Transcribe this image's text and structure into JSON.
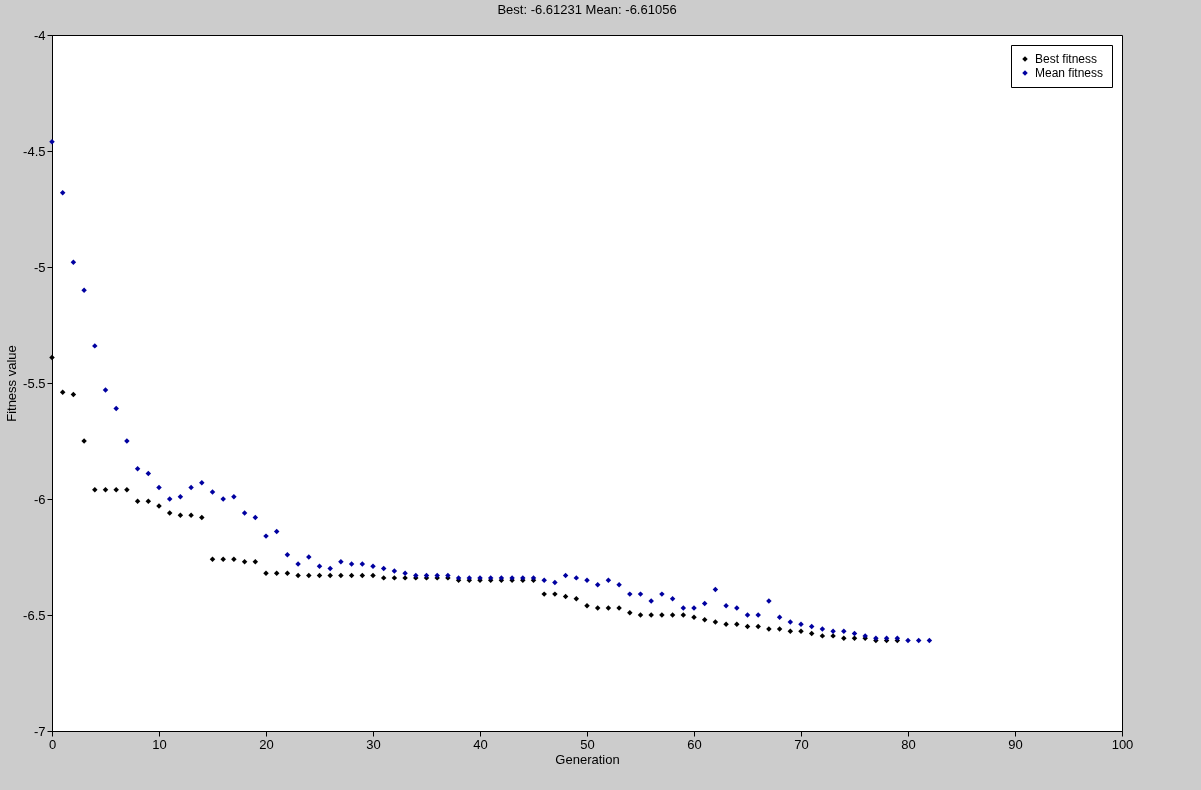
{
  "chart_data": {
    "type": "scatter",
    "title": "Best: -6.61231 Mean: -6.61056",
    "xlabel": "Generation",
    "ylabel": "Fitness value",
    "x": [
      0,
      1,
      2,
      3,
      4,
      5,
      6,
      7,
      8,
      9,
      10,
      11,
      12,
      13,
      14,
      15,
      16,
      17,
      18,
      19,
      20,
      21,
      22,
      23,
      24,
      25,
      26,
      27,
      28,
      29,
      30,
      31,
      32,
      33,
      34,
      35,
      36,
      37,
      38,
      39,
      40,
      41,
      42,
      43,
      44,
      45,
      46,
      47,
      48,
      49,
      50,
      51,
      52,
      53,
      54,
      55,
      56,
      57,
      58,
      59,
      60,
      61,
      62,
      63,
      64,
      65,
      66,
      67,
      68,
      69,
      70,
      71,
      72,
      73,
      74,
      75,
      76,
      77,
      78,
      79,
      80,
      81,
      82
    ],
    "series": [
      {
        "name": "Best fitness",
        "color": "#000000",
        "values": [
          -5.39,
          -5.54,
          -5.55,
          -5.75,
          -5.96,
          -5.96,
          -5.96,
          -5.96,
          -6.01,
          -6.01,
          -6.03,
          -6.06,
          -6.07,
          -6.07,
          -6.08,
          -6.26,
          -6.26,
          -6.26,
          -6.27,
          -6.27,
          -6.32,
          -6.32,
          -6.32,
          -6.33,
          -6.33,
          -6.33,
          -6.33,
          -6.33,
          -6.33,
          -6.33,
          -6.33,
          -6.34,
          -6.34,
          -6.34,
          -6.34,
          -6.34,
          -6.34,
          -6.34,
          -6.35,
          -6.35,
          -6.35,
          -6.35,
          -6.35,
          -6.35,
          -6.35,
          -6.35,
          -6.41,
          -6.41,
          -6.42,
          -6.43,
          -6.46,
          -6.47,
          -6.47,
          -6.47,
          -6.49,
          -6.5,
          -6.5,
          -6.5,
          -6.5,
          -6.5,
          -6.51,
          -6.52,
          -6.53,
          -6.54,
          -6.54,
          -6.55,
          -6.55,
          -6.56,
          -6.56,
          -6.57,
          -6.57,
          -6.58,
          -6.59,
          -6.59,
          -6.6,
          -6.6,
          -6.6,
          -6.61,
          -6.61,
          -6.61,
          null,
          null,
          null
        ]
      },
      {
        "name": "Mean fitness",
        "color": "#0000a0",
        "values": [
          -4.46,
          -4.68,
          -4.98,
          -5.1,
          -5.34,
          -5.53,
          -5.61,
          -5.75,
          -5.87,
          -5.89,
          -5.95,
          -6.0,
          -5.99,
          -5.95,
          -5.93,
          -5.97,
          -6.0,
          -5.99,
          -6.06,
          -6.08,
          -6.16,
          -6.14,
          -6.24,
          -6.28,
          -6.25,
          -6.29,
          -6.3,
          -6.27,
          -6.28,
          -6.28,
          -6.29,
          -6.3,
          -6.31,
          -6.32,
          -6.33,
          -6.33,
          -6.33,
          -6.33,
          -6.34,
          -6.34,
          -6.34,
          -6.34,
          -6.34,
          -6.34,
          -6.34,
          -6.34,
          -6.35,
          -6.36,
          -6.33,
          -6.34,
          -6.35,
          -6.37,
          -6.35,
          -6.37,
          -6.41,
          -6.41,
          -6.44,
          -6.41,
          -6.43,
          -6.47,
          -6.47,
          -6.45,
          -6.39,
          -6.46,
          -6.47,
          -6.5,
          -6.5,
          -6.44,
          -6.51,
          -6.53,
          -6.54,
          -6.55,
          -6.56,
          -6.57,
          -6.57,
          -6.58,
          -6.59,
          -6.6,
          -6.6,
          -6.6,
          -6.61,
          -6.61,
          -6.61
        ]
      }
    ],
    "xlim": [
      0,
      100
    ],
    "xticks": [
      0,
      10,
      20,
      30,
      40,
      50,
      60,
      70,
      80,
      90,
      100
    ],
    "ylim": [
      -7,
      -4
    ],
    "yticks": [
      -7,
      -6.5,
      -6,
      -5.5,
      -5,
      -4.5,
      -4
    ],
    "marker": "diamond",
    "legend": "top right",
    "grid": false
  }
}
